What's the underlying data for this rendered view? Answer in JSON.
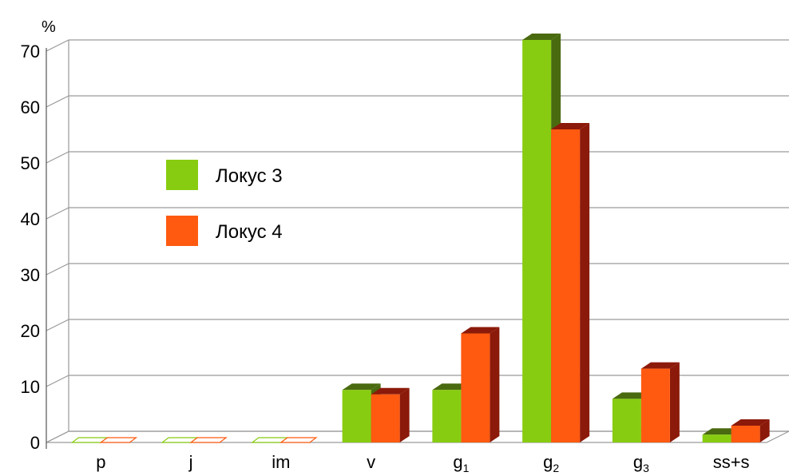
{
  "chart_data": {
    "type": "bar",
    "unit_label": "%",
    "categories": [
      {
        "base": "p",
        "sub": ""
      },
      {
        "base": "j",
        "sub": ""
      },
      {
        "base": "im",
        "sub": ""
      },
      {
        "base": "v",
        "sub": ""
      },
      {
        "base": "g",
        "sub": "1"
      },
      {
        "base": "g",
        "sub": "2"
      },
      {
        "base": "g",
        "sub": "3"
      },
      {
        "base": "ss+s",
        "sub": ""
      }
    ],
    "series": [
      {
        "name": "Локус 3",
        "values": [
          0,
          0,
          0,
          9.4,
          9.4,
          72,
          7.8,
          1.4
        ],
        "color": "#88cc11",
        "top_color": "#4a6a10"
      },
      {
        "name": "Локус 4",
        "values": [
          0,
          0,
          0,
          8.6,
          19.5,
          56,
          13.2,
          3.0
        ],
        "color": "#ff5a10",
        "top_color": "#8b1a0a"
      }
    ],
    "y_ticks": [
      0,
      10,
      20,
      30,
      40,
      50,
      60,
      70
    ],
    "ylim": [
      0,
      70
    ],
    "grid": true,
    "legend": "left"
  }
}
